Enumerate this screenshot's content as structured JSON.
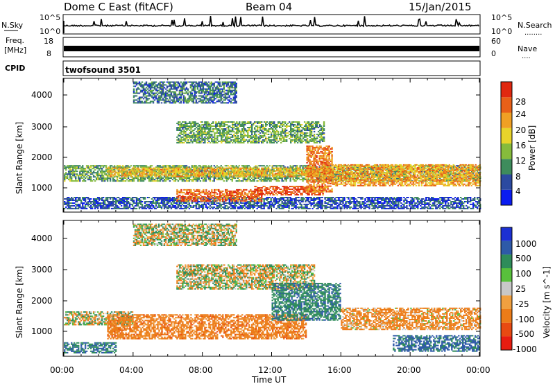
{
  "header": {
    "station": "Dome C East (fitACF)",
    "beam": "Beam 04",
    "date": "15/Jan/2015"
  },
  "nsky_panel": {
    "label": "N.Sky",
    "left_top_tick": "10^5",
    "left_bottom_tick": "10^0",
    "right_top_tick": "10^5",
    "right_bottom_tick": "10^0",
    "right_label": "N.Search",
    "right_label_dots": "........"
  },
  "freq_panel": {
    "label_top": "Freq.",
    "label_bottom": "[MHz]",
    "left_top_tick": "18",
    "left_bottom_tick": "8",
    "right_top_tick": "60",
    "right_bottom_tick": "0",
    "right_label": "Nave",
    "right_label_dots": "...."
  },
  "cpid_panel": {
    "label": "CPID",
    "value": "twofsound 3501"
  },
  "x_axis": {
    "title": "Time UT",
    "ticks": [
      "00:00",
      "04:00",
      "08:00",
      "12:00",
      "16:00",
      "20:00",
      "00:00"
    ]
  },
  "colors": {
    "power_scale": [
      "#0a1cf0",
      "#2c4aa0",
      "#3e8c5c",
      "#86bb3c",
      "#e8d42a",
      "#f0a024",
      "#e86018",
      "#e02810"
    ],
    "velocity_scale": [
      "#1c30d2",
      "#2e5aa8",
      "#2e8c5a",
      "#58c03c",
      "#c8c8c8",
      "#f0a040",
      "#ec7c18",
      "#e84a12",
      "#e81c10"
    ]
  },
  "chart_data": [
    {
      "type": "heatmap",
      "title": "",
      "xlabel": "Time UT",
      "ylabel": "Slant Range [km]",
      "xlim": [
        0,
        24
      ],
      "ylim": [
        180,
        4500
      ],
      "yticks": [
        "1000",
        "2000",
        "3000",
        "4000"
      ],
      "colorbar": {
        "label": "Power [dB]",
        "ticks": [
          "4",
          "8",
          "12",
          "16",
          "20",
          "24",
          "28"
        ],
        "range": [
          0,
          32
        ]
      },
      "bands": [
        {
          "t_start": 0.0,
          "t_end": 24.0,
          "range_low": 1150,
          "range_high": 1650,
          "power": 12
        },
        {
          "t_start": 0.0,
          "t_end": 24.0,
          "range_low": 250,
          "range_high": 650,
          "power": 6
        },
        {
          "t_start": 2.5,
          "t_end": 15.5,
          "range_low": 1300,
          "range_high": 1600,
          "power": 20
        },
        {
          "t_start": 6.5,
          "t_end": 11.5,
          "range_low": 500,
          "range_high": 900,
          "power": 26
        },
        {
          "t_start": 6.5,
          "t_end": 15.0,
          "range_low": 2400,
          "range_high": 3100,
          "power": 12
        },
        {
          "t_start": 11.0,
          "t_end": 15.0,
          "range_low": 700,
          "range_high": 1000,
          "power": 28
        },
        {
          "t_start": 14.0,
          "t_end": 15.5,
          "range_low": 800,
          "range_high": 2300,
          "power": 24
        },
        {
          "t_start": 15.5,
          "t_end": 24.0,
          "range_low": 1000,
          "range_high": 1700,
          "power": 22
        },
        {
          "t_start": 4.0,
          "t_end": 10.0,
          "range_low": 3700,
          "range_high": 4400,
          "power": 8
        }
      ]
    },
    {
      "type": "heatmap",
      "title": "",
      "xlabel": "Time UT",
      "ylabel": "Slant Range [km]",
      "xlim": [
        0,
        24
      ],
      "ylim": [
        180,
        4500
      ],
      "yticks": [
        "1000",
        "2000",
        "3000",
        "4000"
      ],
      "colorbar": {
        "label": "Velocity [m s^-1]",
        "ticks": [
          "1000",
          "500",
          "100",
          "25",
          "-25",
          "-100",
          "-500",
          "-1000"
        ],
        "range": [
          -1000,
          1000
        ]
      },
      "bands": [
        {
          "t_start": 0.0,
          "t_end": 4.0,
          "range_low": 1150,
          "range_high": 1600,
          "velocity": 0
        },
        {
          "t_start": 0.0,
          "t_end": 3.0,
          "range_low": 250,
          "range_high": 600,
          "velocity": 500
        },
        {
          "t_start": 2.5,
          "t_end": 14.0,
          "range_low": 700,
          "range_high": 1500,
          "velocity": -300
        },
        {
          "t_start": 6.5,
          "t_end": 14.5,
          "range_low": 2300,
          "range_high": 3100,
          "velocity": 0
        },
        {
          "t_start": 12.0,
          "t_end": 16.0,
          "range_low": 1300,
          "range_high": 2500,
          "velocity": 400
        },
        {
          "t_start": 16.0,
          "t_end": 24.0,
          "range_low": 1000,
          "range_high": 1700,
          "velocity": -200
        },
        {
          "t_start": 19.0,
          "t_end": 24.0,
          "range_low": 300,
          "range_high": 800,
          "velocity": 600
        },
        {
          "t_start": 4.0,
          "t_end": 10.0,
          "range_low": 3700,
          "range_high": 4400,
          "velocity": 0
        }
      ]
    }
  ]
}
